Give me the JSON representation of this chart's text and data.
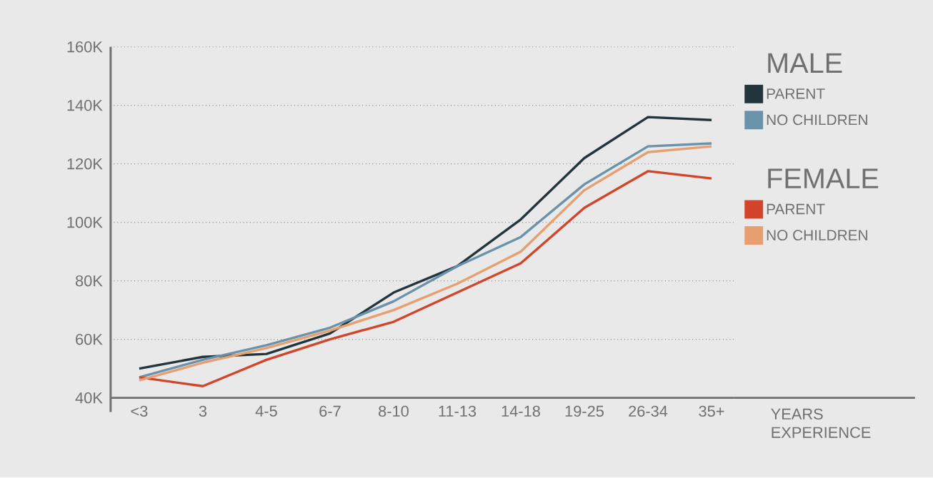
{
  "chart_data": {
    "type": "line",
    "xlabel": "YEARS EXPERIENCE",
    "categories": [
      "<3",
      "3",
      "4-5",
      "6-7",
      "8-10",
      "11-13",
      "14-18",
      "19-25",
      "26-34",
      "35+"
    ],
    "series": [
      {
        "name": "PARENT",
        "color": "#22343c",
        "values": [
          50000,
          54000,
          55000,
          62000,
          76000,
          85000,
          101000,
          122000,
          136000,
          135000
        ]
      },
      {
        "name": "NO CHILDREN",
        "color": "#6a93ab",
        "values": [
          47000,
          53000,
          58000,
          64000,
          73000,
          85000,
          95000,
          113000,
          126000,
          127000
        ]
      },
      {
        "name": "PARENT",
        "color": "#d2452a",
        "values": [
          47000,
          44000,
          53000,
          60000,
          66000,
          76000,
          86000,
          105000,
          117500,
          115000
        ]
      },
      {
        "name": "NO CHILDREN",
        "color": "#e89f70",
        "values": [
          46000,
          52000,
          57000,
          63000,
          70000,
          79000,
          90000,
          111000,
          124000,
          126000
        ]
      }
    ],
    "annotations": [
      "MALE",
      "FEMALE"
    ],
    "ylim": [
      40000,
      160000
    ],
    "yticks": [
      {
        "value": 40000,
        "label": "40K"
      },
      {
        "value": 60000,
        "label": "60K"
      },
      {
        "value": 80000,
        "label": "80K"
      },
      {
        "value": 100000,
        "label": "100K"
      },
      {
        "value": 120000,
        "label": "120K"
      },
      {
        "value": 140000,
        "label": "140K"
      },
      {
        "value": 160000,
        "label": "160K"
      }
    ],
    "grid": "y",
    "legend": "right"
  }
}
